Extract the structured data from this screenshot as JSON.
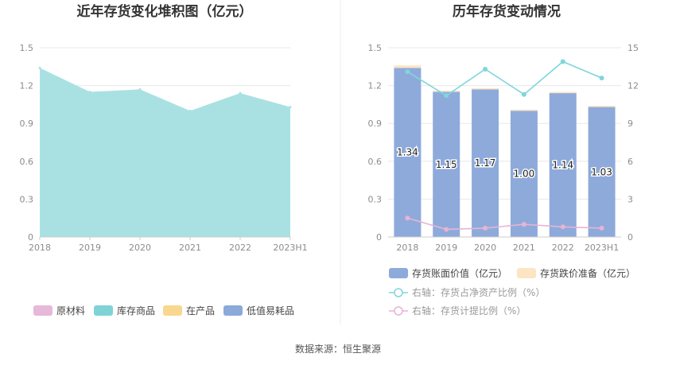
{
  "left_chart": {
    "title": "近年存货变化堆积图（亿元）",
    "legend": [
      {
        "label": "原材料",
        "color": "#e6b8d9"
      },
      {
        "label": "库存商品",
        "color": "#7fd3d6"
      },
      {
        "label": "在产品",
        "color": "#f9d78e"
      },
      {
        "label": "低值易耗品",
        "color": "#8ba9d9"
      }
    ]
  },
  "right_chart": {
    "title": "历年存货变动情况",
    "legend": [
      {
        "label": "存货账面价值（亿元）",
        "color": "#8eaadb",
        "kind": "bar"
      },
      {
        "label": "存货跌价准备（亿元）",
        "color": "#fde5c3",
        "kind": "bar"
      },
      {
        "label": "右轴：存货占净资产比例（%）",
        "color": "#7fd6dc",
        "kind": "line"
      },
      {
        "label": "右轴：存货计提比例（%）",
        "color": "#e7b4d4",
        "kind": "line"
      }
    ]
  },
  "footer": "数据来源：恒生聚源",
  "chart_data": [
    {
      "type": "area",
      "title": "近年存货变化堆积图（亿元）",
      "categories": [
        "2018",
        "2019",
        "2020",
        "2021",
        "2022",
        "2023H1"
      ],
      "series": [
        {
          "name": "库存商品",
          "values": [
            1.34,
            1.15,
            1.17,
            1.0,
            1.14,
            1.03
          ],
          "color": "#a9e1e3"
        }
      ],
      "yticks": [
        "0",
        "0.3",
        "0.6",
        "0.9",
        "1.2",
        "1.5"
      ],
      "ylim": [
        0,
        1.5
      ],
      "grid": true,
      "legend_position": "bottom"
    },
    {
      "type": "bar",
      "title": "历年存货变动情况",
      "categories": [
        "2018",
        "2019",
        "2020",
        "2021",
        "2022",
        "2023H1"
      ],
      "series": [
        {
          "name": "存货账面价值（亿元）",
          "values": [
            1.34,
            1.15,
            1.17,
            1.0,
            1.14,
            1.03
          ],
          "labels": [
            "1.34",
            "1.15",
            "1.17",
            "1.00",
            "1.14",
            "1.03"
          ],
          "color": "#8eaadb"
        },
        {
          "name": "存货跌价准备（亿元）",
          "values": [
            0.02,
            0.01,
            0.01,
            0.01,
            0.01,
            0.01
          ],
          "color": "#fde5c3"
        },
        {
          "name": "右轴：存货占净资产比例（%）",
          "axis": "right",
          "type": "line",
          "values": [
            13.1,
            11.2,
            13.3,
            11.3,
            13.9,
            12.6
          ],
          "color": "#7fd6dc"
        },
        {
          "name": "右轴：存货计提比例（%）",
          "axis": "right",
          "type": "line",
          "values": [
            1.5,
            0.6,
            0.7,
            1.0,
            0.8,
            0.7
          ],
          "color": "#e7b4d4"
        }
      ],
      "yticks_left": [
        "0",
        "0.3",
        "0.6",
        "0.9",
        "1.2",
        "1.5"
      ],
      "yticks_right": [
        "0",
        "3",
        "6",
        "9",
        "12",
        "15"
      ],
      "ylim_left": [
        0,
        1.5
      ],
      "ylim_right": [
        0,
        15
      ],
      "grid": true,
      "legend_position": "bottom"
    }
  ]
}
